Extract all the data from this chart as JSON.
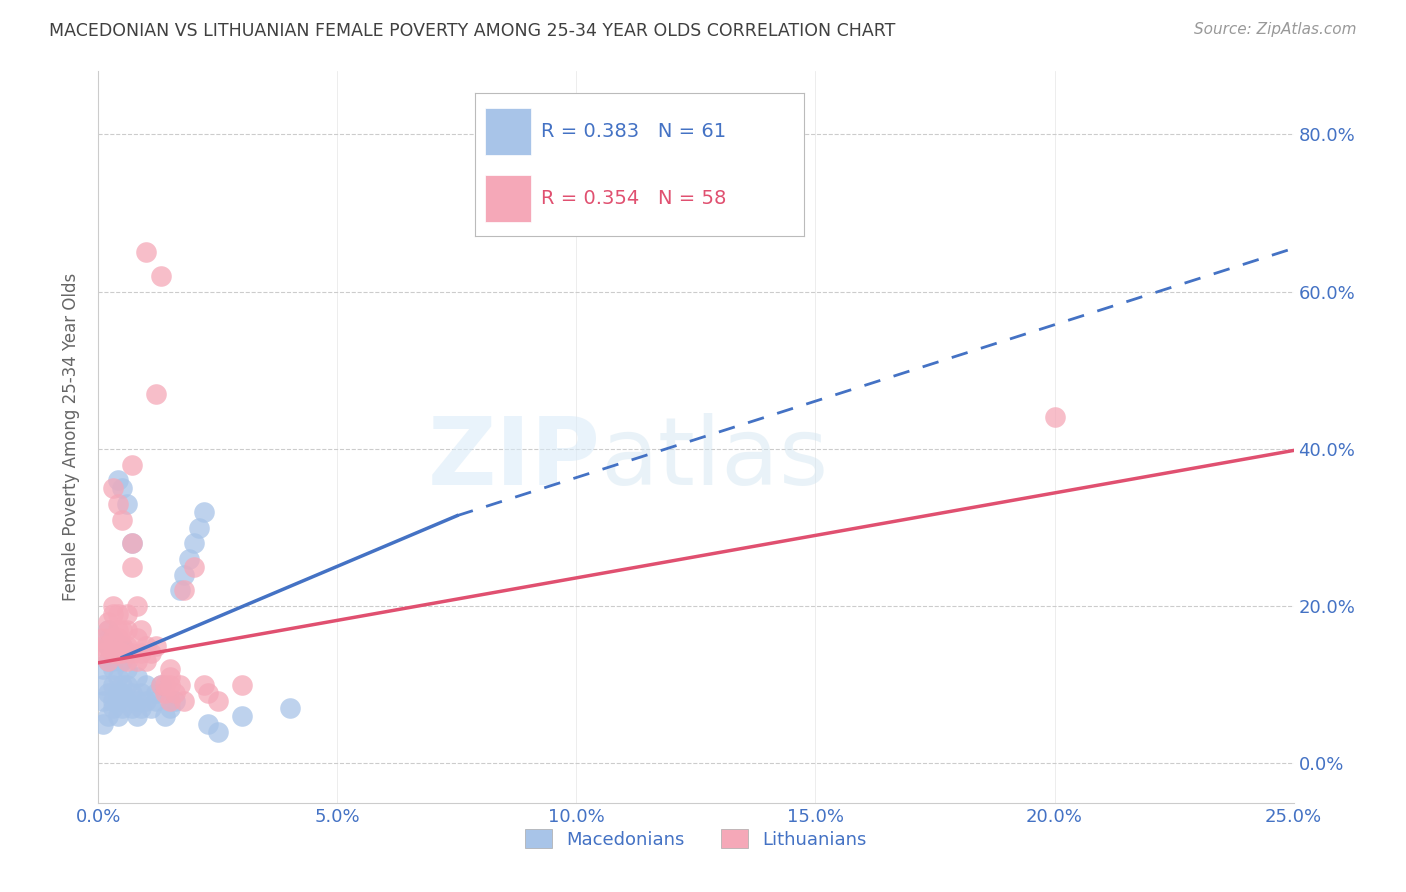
{
  "title": "MACEDONIAN VS LITHUANIAN FEMALE POVERTY AMONG 25-34 YEAR OLDS CORRELATION CHART",
  "source": "Source: ZipAtlas.com",
  "ylabel": "Female Poverty Among 25-34 Year Olds",
  "xlim": [
    0.0,
    0.25
  ],
  "ylim": [
    -0.05,
    0.88
  ],
  "xticks": [
    0.0,
    0.05,
    0.1,
    0.15,
    0.2,
    0.25
  ],
  "yticks": [
    0.0,
    0.2,
    0.4,
    0.6,
    0.8
  ],
  "mac_color": "#a8c4e8",
  "lit_color": "#f5a8b8",
  "mac_line_color": "#4472c4",
  "lit_line_color": "#e05070",
  "mac_R": 0.383,
  "mac_N": 61,
  "lit_R": 0.354,
  "lit_N": 58,
  "title_color": "#404040",
  "axis_color": "#4472c4",
  "grid_color": "#cccccc",
  "mac_solid_line": {
    "x0": 0.005,
    "y0": 0.135,
    "x1": 0.075,
    "y1": 0.315
  },
  "mac_dash_line": {
    "x0": 0.075,
    "y0": 0.315,
    "x1": 0.25,
    "y1": 0.655
  },
  "lit_line": {
    "x0": 0.0,
    "y0": 0.128,
    "x1": 0.25,
    "y1": 0.398
  },
  "mac_scatter": [
    [
      0.001,
      0.05
    ],
    [
      0.001,
      0.08
    ],
    [
      0.001,
      0.1
    ],
    [
      0.001,
      0.12
    ],
    [
      0.002,
      0.06
    ],
    [
      0.002,
      0.09
    ],
    [
      0.002,
      0.13
    ],
    [
      0.002,
      0.15
    ],
    [
      0.002,
      0.16
    ],
    [
      0.002,
      0.17
    ],
    [
      0.003,
      0.07
    ],
    [
      0.003,
      0.08
    ],
    [
      0.003,
      0.1
    ],
    [
      0.003,
      0.12
    ],
    [
      0.003,
      0.13
    ],
    [
      0.003,
      0.15
    ],
    [
      0.003,
      0.16
    ],
    [
      0.004,
      0.06
    ],
    [
      0.004,
      0.08
    ],
    [
      0.004,
      0.09
    ],
    [
      0.004,
      0.11
    ],
    [
      0.004,
      0.14
    ],
    [
      0.004,
      0.36
    ],
    [
      0.005,
      0.07
    ],
    [
      0.005,
      0.09
    ],
    [
      0.005,
      0.1
    ],
    [
      0.005,
      0.13
    ],
    [
      0.005,
      0.15
    ],
    [
      0.005,
      0.35
    ],
    [
      0.006,
      0.08
    ],
    [
      0.006,
      0.1
    ],
    [
      0.006,
      0.12
    ],
    [
      0.006,
      0.14
    ],
    [
      0.006,
      0.33
    ],
    [
      0.007,
      0.07
    ],
    [
      0.007,
      0.09
    ],
    [
      0.007,
      0.28
    ],
    [
      0.008,
      0.06
    ],
    [
      0.008,
      0.08
    ],
    [
      0.008,
      0.11
    ],
    [
      0.009,
      0.07
    ],
    [
      0.009,
      0.09
    ],
    [
      0.01,
      0.08
    ],
    [
      0.01,
      0.1
    ],
    [
      0.011,
      0.07
    ],
    [
      0.012,
      0.08
    ],
    [
      0.012,
      0.09
    ],
    [
      0.013,
      0.1
    ],
    [
      0.014,
      0.06
    ],
    [
      0.015,
      0.07
    ],
    [
      0.016,
      0.08
    ],
    [
      0.017,
      0.22
    ],
    [
      0.018,
      0.24
    ],
    [
      0.019,
      0.26
    ],
    [
      0.02,
      0.28
    ],
    [
      0.021,
      0.3
    ],
    [
      0.022,
      0.32
    ],
    [
      0.023,
      0.05
    ],
    [
      0.025,
      0.04
    ],
    [
      0.03,
      0.06
    ],
    [
      0.04,
      0.07
    ]
  ],
  "lit_scatter": [
    [
      0.001,
      0.14
    ],
    [
      0.001,
      0.15
    ],
    [
      0.001,
      0.16
    ],
    [
      0.002,
      0.13
    ],
    [
      0.002,
      0.15
    ],
    [
      0.002,
      0.17
    ],
    [
      0.002,
      0.18
    ],
    [
      0.003,
      0.14
    ],
    [
      0.003,
      0.16
    ],
    [
      0.003,
      0.19
    ],
    [
      0.003,
      0.2
    ],
    [
      0.003,
      0.35
    ],
    [
      0.004,
      0.14
    ],
    [
      0.004,
      0.16
    ],
    [
      0.004,
      0.17
    ],
    [
      0.004,
      0.19
    ],
    [
      0.004,
      0.33
    ],
    [
      0.005,
      0.14
    ],
    [
      0.005,
      0.15
    ],
    [
      0.005,
      0.17
    ],
    [
      0.005,
      0.31
    ],
    [
      0.006,
      0.13
    ],
    [
      0.006,
      0.15
    ],
    [
      0.006,
      0.17
    ],
    [
      0.006,
      0.19
    ],
    [
      0.007,
      0.14
    ],
    [
      0.007,
      0.25
    ],
    [
      0.007,
      0.28
    ],
    [
      0.007,
      0.38
    ],
    [
      0.008,
      0.13
    ],
    [
      0.008,
      0.16
    ],
    [
      0.008,
      0.2
    ],
    [
      0.009,
      0.14
    ],
    [
      0.009,
      0.17
    ],
    [
      0.01,
      0.13
    ],
    [
      0.01,
      0.15
    ],
    [
      0.01,
      0.65
    ],
    [
      0.011,
      0.14
    ],
    [
      0.012,
      0.15
    ],
    [
      0.012,
      0.47
    ],
    [
      0.013,
      0.1
    ],
    [
      0.013,
      0.62
    ],
    [
      0.014,
      0.09
    ],
    [
      0.014,
      0.1
    ],
    [
      0.015,
      0.08
    ],
    [
      0.015,
      0.1
    ],
    [
      0.015,
      0.11
    ],
    [
      0.015,
      0.12
    ],
    [
      0.016,
      0.09
    ],
    [
      0.017,
      0.1
    ],
    [
      0.018,
      0.08
    ],
    [
      0.018,
      0.22
    ],
    [
      0.02,
      0.25
    ],
    [
      0.022,
      0.1
    ],
    [
      0.023,
      0.09
    ],
    [
      0.025,
      0.08
    ],
    [
      0.03,
      0.1
    ],
    [
      0.2,
      0.44
    ]
  ]
}
